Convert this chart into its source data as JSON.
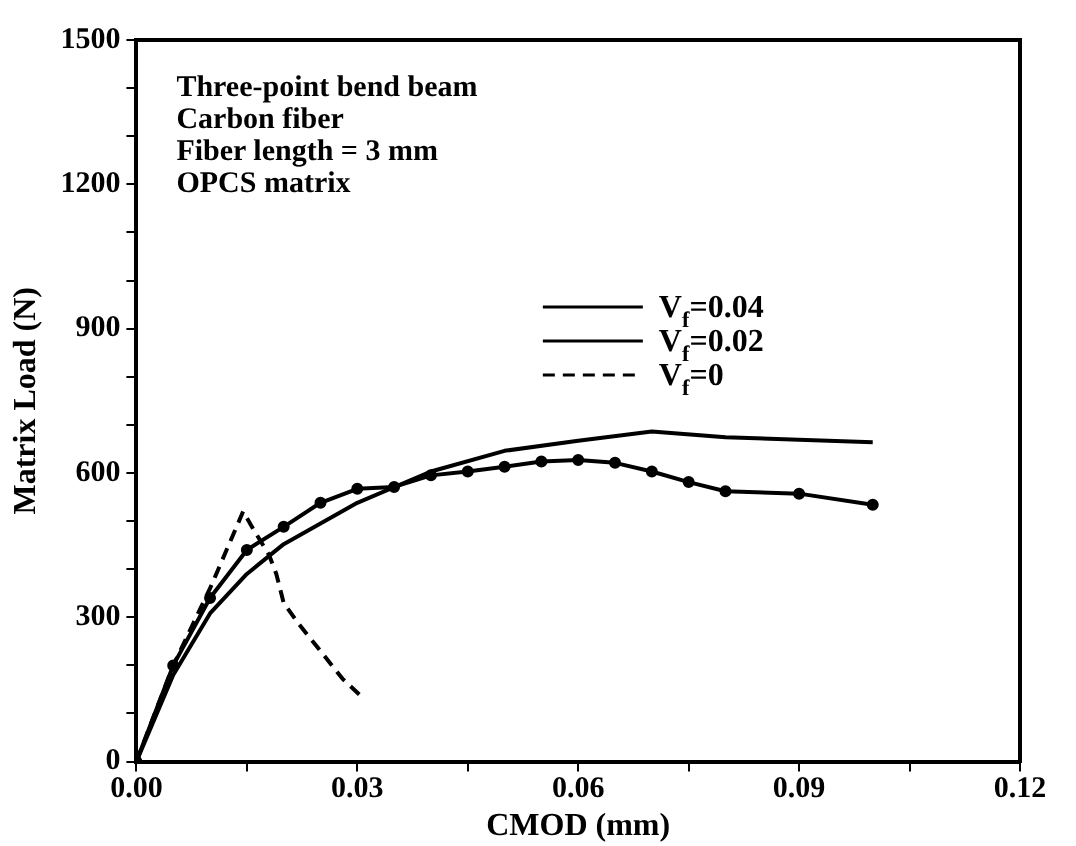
{
  "chart_data": {
    "type": "line",
    "xlabel": "CMOD (mm)",
    "ylabel": "Matrix Load (N)",
    "annotations": [
      "Three-point bend beam",
      "Carbon fiber",
      "Fiber length = 3 mm",
      "OPCS matrix"
    ],
    "series": [
      {
        "name": "V$_{f}$=0.04",
        "color": "#000000",
        "marker": "none",
        "line_style": "solid",
        "x": [
          0,
          0.005,
          0.01,
          0.015,
          0.02,
          0.03,
          0.04,
          0.05,
          0.06,
          0.07,
          0.08,
          0.1
        ],
        "values": [
          0,
          180,
          308,
          390,
          452,
          538,
          603,
          646,
          667,
          686,
          674,
          664
        ]
      },
      {
        "name": "V$_{f}$=0.02",
        "color": "#000000",
        "marker": "circle",
        "line_style": "solid",
        "x": [
          0,
          0.005,
          0.01,
          0.015,
          0.02,
          0.025,
          0.03,
          0.035,
          0.04,
          0.045,
          0.05,
          0.055,
          0.06,
          0.065,
          0.07,
          0.075,
          0.08,
          0.09,
          0.1
        ],
        "values": [
          0,
          200,
          340,
          440,
          488,
          538,
          567,
          571,
          595,
          603,
          613,
          624,
          627,
          621,
          603,
          581,
          562,
          557,
          534
        ]
      },
      {
        "name": "V$_{f}$=0",
        "color": "#000000",
        "marker": "none",
        "line_style": "dashed",
        "x": [
          0,
          0.005,
          0.01,
          0.0145,
          0.016,
          0.018,
          0.019,
          0.02,
          0.022,
          0.025,
          0.028,
          0.031
        ],
        "values": [
          0,
          200,
          360,
          520,
          480,
          430,
          390,
          330,
          287,
          230,
          172,
          129
        ]
      }
    ],
    "xlim": [
      0,
      0.12
    ],
    "xticks": [
      {
        "value": 0,
        "label": "0.00"
      },
      {
        "value": 0.015,
        "label": null
      },
      {
        "value": 0.03,
        "label": "0.03"
      },
      {
        "value": 0.045,
        "label": null
      },
      {
        "value": 0.06,
        "label": "0.06"
      },
      {
        "value": 0.075,
        "label": null
      },
      {
        "value": 0.09,
        "label": "0.09"
      },
      {
        "value": 0.105,
        "label": null
      },
      {
        "value": 0.12,
        "label": "0.12"
      }
    ],
    "ylim": [
      0,
      1500
    ],
    "yticks": [
      0,
      {
        "value": 100,
        "label": null
      },
      {
        "value": 200,
        "label": null
      },
      300,
      {
        "value": 400,
        "label": null
      },
      {
        "value": 500,
        "label": null
      },
      600,
      {
        "value": 700,
        "label": null
      },
      {
        "value": 800,
        "label": null
      },
      900,
      {
        "value": 1000,
        "label": null
      },
      {
        "value": 1100,
        "label": null
      },
      1200,
      {
        "value": 1300,
        "label": null
      },
      {
        "value": 1400,
        "label": null
      },
      1500
    ],
    "grid": false,
    "legend": "top right"
  }
}
